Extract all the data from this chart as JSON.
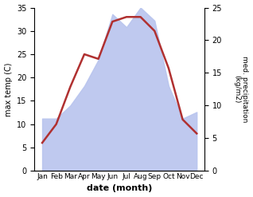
{
  "months": [
    "Jan",
    "Feb",
    "Mar",
    "Apr",
    "May",
    "Jun",
    "Jul",
    "Aug",
    "Sep",
    "Oct",
    "Nov",
    "Dec"
  ],
  "temperature": [
    6,
    10,
    18,
    25,
    24,
    32,
    33,
    33,
    30,
    22,
    11,
    8
  ],
  "precipitation": [
    8,
    8,
    10,
    13,
    17,
    24,
    22,
    25,
    23,
    13,
    8,
    9
  ],
  "temp_color": "#b03030",
  "precip_color": "#b8c4ee",
  "ylabel_left": "max temp (C)",
  "ylabel_right": "med. precipitation\n(kg/m2)",
  "xlabel": "date (month)",
  "ylim_left": [
    0,
    35
  ],
  "ylim_right": [
    0,
    25
  ],
  "bg_color": "#ffffff"
}
